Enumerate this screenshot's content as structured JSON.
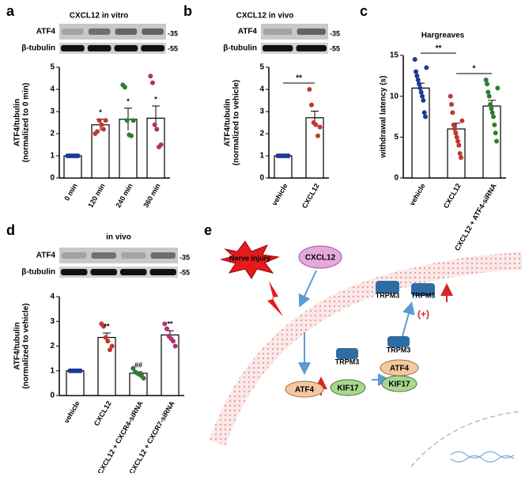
{
  "chart_data": [
    {
      "type": "bar",
      "panel": "a",
      "title": "CXCL12 in vitro",
      "blot_labels": [
        "ATF4",
        "β-tubulin"
      ],
      "blot_markers": [
        "-35",
        "-55"
      ],
      "ylabel": [
        "ATF4/tubulin",
        "(normalized to 0 min)"
      ],
      "categories": [
        "0 min",
        "120 min",
        "240 min",
        "360 min"
      ],
      "values": [
        1,
        2.4,
        2.65,
        2.7
      ],
      "errors": [
        0.02,
        0.25,
        0.5,
        0.55
      ],
      "points": [
        [
          1,
          1,
          1,
          1,
          1,
          1
        ],
        [
          2.0,
          2.1,
          2.6,
          2.4,
          2.2,
          2.6
        ],
        [
          4.2,
          4.1,
          2.6,
          1.95,
          1.9,
          2.6
        ],
        [
          4.6,
          4.3,
          2.4,
          2.2,
          1.4,
          1.5
        ]
      ],
      "point_colors": [
        "#1f3a93",
        "#c0392b",
        "#2e7d32",
        "#b0306e"
      ],
      "annotations": [
        {
          "index": 1,
          "text": "*"
        },
        {
          "index": 2,
          "text": "*"
        },
        {
          "index": 3,
          "text": "*"
        }
      ],
      "ylim": [
        0,
        5
      ],
      "yticks": [
        0,
        1,
        2,
        3,
        4,
        5
      ]
    },
    {
      "type": "bar",
      "panel": "b",
      "title": "CXCL12 in vivo",
      "blot_labels": [
        "ATF4",
        "β-tubulin"
      ],
      "blot_markers": [
        "-35",
        "-55"
      ],
      "ylabel": [
        "ATF4/tubulin",
        "(normalized to vehicle)"
      ],
      "categories": [
        "vehicle",
        "CXCL12"
      ],
      "values": [
        1,
        2.72
      ],
      "errors": [
        0.02,
        0.3
      ],
      "points": [
        [
          1,
          1,
          1,
          1,
          1,
          1
        ],
        [
          4.0,
          3.3,
          2.5,
          2.4,
          1.9,
          2.3
        ]
      ],
      "point_colors": [
        "#1f3a93",
        "#c0392b"
      ],
      "brackets": [
        {
          "from": 0,
          "to": 1,
          "text": "**"
        }
      ],
      "ylim": [
        0,
        5
      ],
      "yticks": [
        0,
        1,
        2,
        3,
        4,
        5
      ]
    },
    {
      "type": "bar",
      "panel": "c",
      "title": "Hargreaves",
      "ylabel": [
        "withdrawal latency (s)"
      ],
      "categories": [
        "vehicle",
        "CXCL12",
        "CXCL12 + ATF4-siRNA"
      ],
      "values": [
        11,
        6,
        8.8
      ],
      "errors": [
        0.6,
        0.7,
        0.7
      ],
      "points": [
        [
          14.5,
          13,
          12.5,
          12,
          11.5,
          11,
          10.5,
          10,
          9.5,
          8,
          7.5,
          13.5
        ],
        [
          10,
          9,
          8,
          6.5,
          6,
          5.5,
          5,
          4.5,
          4,
          3,
          2.5,
          7
        ],
        [
          12,
          11.5,
          10.5,
          10,
          9,
          8.5,
          8,
          7.5,
          6.5,
          5.5,
          4.5,
          11
        ]
      ],
      "point_colors": [
        "#1f3a93",
        "#c0392b",
        "#2e7d32"
      ],
      "brackets": [
        {
          "from": 0,
          "to": 1,
          "text": "**"
        },
        {
          "from": 1,
          "to": 2,
          "text": "*"
        }
      ],
      "ylim": [
        0,
        15
      ],
      "yticks": [
        0,
        5,
        10,
        15
      ]
    },
    {
      "type": "bar",
      "panel": "d",
      "title": "in vivo",
      "blot_labels": [
        "ATF4",
        "β-tubulin"
      ],
      "blot_markers": [
        "-35",
        "-55"
      ],
      "ylabel": [
        "ATF4/tubulin",
        "(normalized to vehicle)"
      ],
      "categories": [
        "vehicle",
        "CXCL12",
        "CXCL12 + CXCR4-siRNA",
        "CXCL12 + CXCR7-siRNA"
      ],
      "values": [
        1,
        2.35,
        0.9,
        2.45
      ],
      "errors": [
        0.02,
        0.18,
        0.06,
        0.17
      ],
      "points": [
        [
          1,
          1,
          1,
          1,
          1,
          1
        ],
        [
          2.9,
          2.8,
          2.35,
          2.2,
          1.85,
          2.0
        ],
        [
          1.1,
          0.95,
          0.9,
          0.85,
          0.8,
          0.7
        ],
        [
          2.9,
          2.7,
          2.4,
          2.3,
          2.2,
          2.0
        ]
      ],
      "point_colors": [
        "#1f3a93",
        "#c0392b",
        "#2e7d32",
        "#b0306e"
      ],
      "annotations": [
        {
          "index": 1,
          "text": "**"
        },
        {
          "index": 2,
          "text": "##"
        },
        {
          "index": 3,
          "text": "**"
        }
      ],
      "ylim": [
        0,
        4
      ],
      "yticks": [
        0,
        1,
        2,
        3,
        4
      ]
    }
  ],
  "diagram": {
    "panel": "e",
    "nerve_injury": "Nerve injury",
    "ligand": "CXCL12",
    "trpm3": [
      "TRPM3",
      "TRPM3",
      "TRPM3",
      "TRPM3"
    ],
    "atf4": [
      "ATF4",
      "ATF4"
    ],
    "kif17": [
      "KIF17",
      "KIF17"
    ],
    "plus": "(+)"
  }
}
